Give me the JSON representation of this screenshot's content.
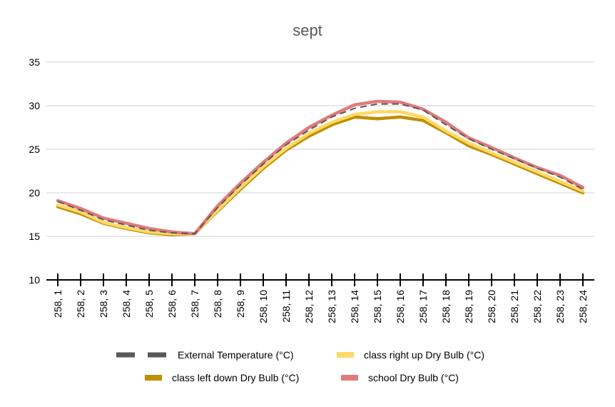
{
  "chart_data": {
    "type": "line",
    "title": "sept",
    "xlabel": "",
    "ylabel": "",
    "ylim": [
      10,
      35
    ],
    "yticks": [
      10,
      15,
      20,
      25,
      30,
      35
    ],
    "grid": true,
    "legend_position": "bottom",
    "categories": [
      "258, 1",
      "258, 2",
      "258, 3",
      "258, 4",
      "258, 5",
      "258, 6",
      "258, 7",
      "258, 8",
      "258, 9",
      "258, 10",
      "258, 11",
      "258, 12",
      "258, 13",
      "258, 14",
      "258, 15",
      "258, 16",
      "258, 17",
      "258, 18",
      "258, 19",
      "258, 20",
      "258, 21",
      "258, 22",
      "258, 23",
      "258, 24"
    ],
    "series": [
      {
        "name": "class left down Dry Bulb (°C)",
        "color": "#bf9000",
        "style": "solid",
        "values": [
          18.4,
          17.6,
          16.5,
          15.9,
          15.4,
          15.2,
          15.3,
          17.9,
          20.4,
          22.8,
          24.9,
          26.5,
          27.8,
          28.7,
          28.5,
          28.7,
          28.3,
          26.9,
          25.4,
          24.4,
          23.3,
          22.2,
          21.1,
          20.0
        ]
      },
      {
        "name": "class right up Dry Bulb (°C)",
        "color": "#ffd966",
        "style": "solid",
        "values": [
          18.6,
          17.8,
          16.6,
          16.0,
          15.5,
          15.3,
          15.3,
          18.0,
          20.6,
          23.0,
          25.1,
          26.8,
          28.1,
          29.0,
          29.3,
          29.3,
          28.7,
          27.1,
          25.7,
          24.6,
          23.5,
          22.4,
          21.3,
          20.2
        ]
      },
      {
        "name": "school Dry Bulb (°C)",
        "color": "#e07b7b",
        "style": "solid",
        "values": [
          19.1,
          18.2,
          17.1,
          16.5,
          15.9,
          15.5,
          15.3,
          18.5,
          21.1,
          23.5,
          25.7,
          27.5,
          28.9,
          30.1,
          30.5,
          30.4,
          29.6,
          28.1,
          26.3,
          25.2,
          24.0,
          22.9,
          22.0,
          20.6
        ]
      },
      {
        "name": "External Temperature (°C)",
        "color": "#595959",
        "style": "dashed",
        "values": [
          19.0,
          18.0,
          16.9,
          16.3,
          15.7,
          15.4,
          15.3,
          18.3,
          20.9,
          23.3,
          25.5,
          27.2,
          28.7,
          29.7,
          30.2,
          30.2,
          29.5,
          27.8,
          26.2,
          25.0,
          23.9,
          22.8,
          21.8,
          20.4
        ]
      }
    ],
    "legend": {
      "rows": [
        [
          {
            "label": "External Temperature (°C)",
            "color": "#595959",
            "style": "dashed"
          },
          {
            "label": "class right up Dry Bulb (°C)",
            "color": "#ffd966",
            "style": "solid"
          }
        ],
        [
          {
            "label": "class left down Dry Bulb (°C)",
            "color": "#bf9000",
            "style": "solid"
          },
          {
            "label": "school Dry Bulb (°C)",
            "color": "#e07b7b",
            "style": "solid"
          }
        ]
      ]
    }
  }
}
